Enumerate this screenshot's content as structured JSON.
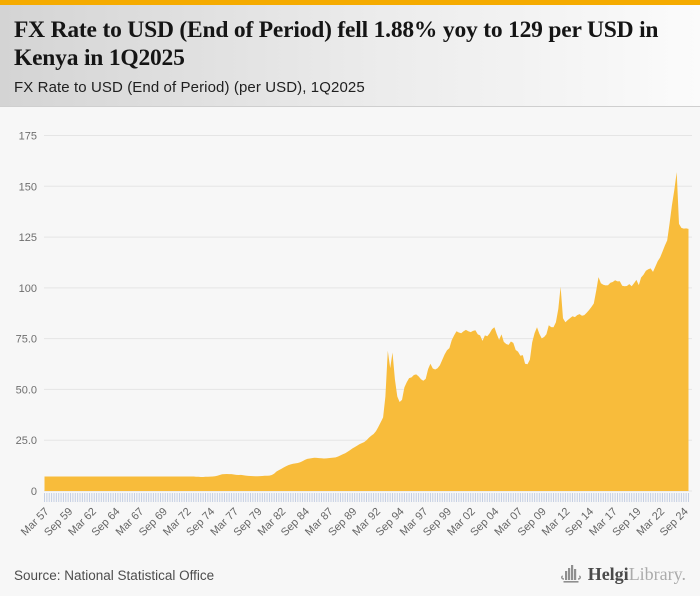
{
  "header": {
    "title": "FX Rate to USD (End of Period) fell 1.88% yoy to 129 per USD in Kenya in 1Q2025",
    "subtitle": "FX Rate to USD (End of Period) (per USD), 1Q2025"
  },
  "footer": {
    "source": "Source: National Statistical Office",
    "logo_helgi": "Helgi",
    "logo_library": "Library."
  },
  "icons": {
    "helgi_logo_icon": "bar-chart-building"
  },
  "colors": {
    "accent_bar": "#F5AB00",
    "area_fill": "#F8BC3B",
    "chart_bg": "#F7F7F7",
    "grid": "#E5E5E5",
    "tick": "#C5CFE3",
    "axis_text": "#6E6E6E",
    "header_gradient_left": "#D4D4D4",
    "header_gradient_right": "#FBFBFB"
  },
  "chart_data": {
    "type": "area",
    "title": "FX Rate to USD (End of Period) (per USD), 1Q2025",
    "xlabel": "",
    "ylabel": "",
    "frequency": "quarterly",
    "x_start": "Mar 1957",
    "x_end": "Mar 2025",
    "ylim": [
      0,
      175
    ],
    "grid": true,
    "legend": false,
    "y_tick_step": 25,
    "y_tick_labels": [
      "0",
      "25.0",
      "50.0",
      "75.0",
      "100",
      "125",
      "150",
      "175"
    ],
    "x_tick_every": 10,
    "x_tick_labels": [
      "Mar 57",
      "Sep 59",
      "Mar 62",
      "Sep 64",
      "Mar 67",
      "Sep 69",
      "Mar 72",
      "Sep 74",
      "Mar 77",
      "Sep 79",
      "Mar 82",
      "Sep 84",
      "Mar 87",
      "Sep 89",
      "Mar 92",
      "Sep 94",
      "Mar 97",
      "Sep 99",
      "Mar 02",
      "Sep 04",
      "Mar 07",
      "Sep 09",
      "Mar 12",
      "Sep 14",
      "Mar 17",
      "Sep 19",
      "Mar 22",
      "Sep 24"
    ],
    "latest_value": 129,
    "yoy_change_pct": -1.88,
    "values": [
      7.14,
      7.14,
      7.14,
      7.14,
      7.14,
      7.14,
      7.14,
      7.14,
      7.14,
      7.14,
      7.14,
      7.14,
      7.14,
      7.14,
      7.14,
      7.14,
      7.14,
      7.14,
      7.14,
      7.14,
      7.14,
      7.14,
      7.14,
      7.14,
      7.14,
      7.14,
      7.14,
      7.14,
      7.14,
      7.14,
      7.14,
      7.14,
      7.14,
      7.14,
      7.14,
      7.14,
      7.14,
      7.14,
      7.14,
      7.14,
      7.14,
      7.14,
      7.14,
      7.14,
      7.14,
      7.14,
      7.14,
      7.14,
      7.14,
      7.14,
      7.14,
      7.14,
      7.14,
      7.14,
      7.14,
      7.14,
      7.14,
      7.14,
      7.14,
      7.14,
      7.14,
      7.14,
      7.14,
      7.14,
      7.0,
      7.0,
      6.9,
      6.9,
      7.0,
      7.05,
      7.1,
      7.14,
      7.3,
      7.55,
      7.9,
      8.26,
      8.31,
      8.35,
      8.32,
      8.31,
      8.1,
      7.95,
      7.9,
      7.95,
      7.72,
      7.6,
      7.45,
      7.4,
      7.35,
      7.3,
      7.3,
      7.33,
      7.4,
      7.48,
      7.53,
      7.57,
      7.9,
      8.55,
      9.6,
      10.29,
      10.9,
      11.55,
      12.2,
      12.73,
      13.1,
      13.4,
      13.6,
      13.8,
      14.2,
      14.7,
      15.3,
      15.78,
      16.0,
      16.2,
      16.4,
      16.28,
      16.2,
      16.1,
      16.0,
      16.04,
      16.2,
      16.3,
      16.45,
      16.52,
      17.0,
      17.5,
      18.1,
      18.6,
      19.3,
      20.1,
      20.9,
      21.6,
      22.3,
      23.0,
      23.6,
      24.08,
      25.0,
      26.2,
      27.2,
      28.07,
      29.5,
      31.5,
      33.8,
      36.22,
      46.5,
      69.0,
      60.5,
      68.16,
      55.0,
      46.5,
      43.8,
      44.84,
      51.0,
      53.6,
      55.6,
      55.94,
      57.1,
      57.4,
      56.4,
      55.02,
      54.3,
      55.2,
      60.0,
      62.68,
      60.3,
      59.8,
      60.4,
      61.91,
      64.6,
      67.2,
      69.3,
      70.33,
      74.2,
      76.6,
      78.6,
      78.04,
      77.7,
      78.6,
      79.3,
      78.6,
      78.2,
      78.8,
      79.1,
      77.07,
      76.6,
      73.9,
      76.6,
      76.14,
      77.6,
      79.6,
      80.6,
      77.34,
      74.4,
      77.1,
      73.4,
      72.37,
      71.9,
      73.6,
      72.9,
      69.4,
      68.6,
      66.6,
      66.9,
      62.68,
      62.4,
      64.7,
      73.2,
      77.71,
      80.6,
      77.5,
      75.1,
      75.82,
      77.2,
      81.6,
      80.7,
      80.57,
      83.1,
      89.6,
      100.5,
      85.07,
      83.1,
      84.2,
      85.1,
      86.0,
      85.6,
      86.6,
      87.1,
      86.31,
      86.6,
      87.7,
      89.1,
      90.6,
      92.3,
      98.6,
      105.3,
      102.31,
      101.5,
      101.2,
      101.3,
      102.49,
      102.9,
      103.7,
      103.2,
      103.23,
      101.0,
      100.8,
      100.9,
      101.85,
      100.8,
      102.3,
      103.9,
      101.34,
      105.1,
      106.5,
      108.4,
      109.17,
      109.6,
      107.85,
      110.5,
      113.14,
      114.95,
      117.83,
      120.73,
      123.37,
      131.8,
      140.52,
      148.1,
      157.0,
      131.5,
      129.53,
      129.18,
      129.29,
      129.0
    ]
  }
}
